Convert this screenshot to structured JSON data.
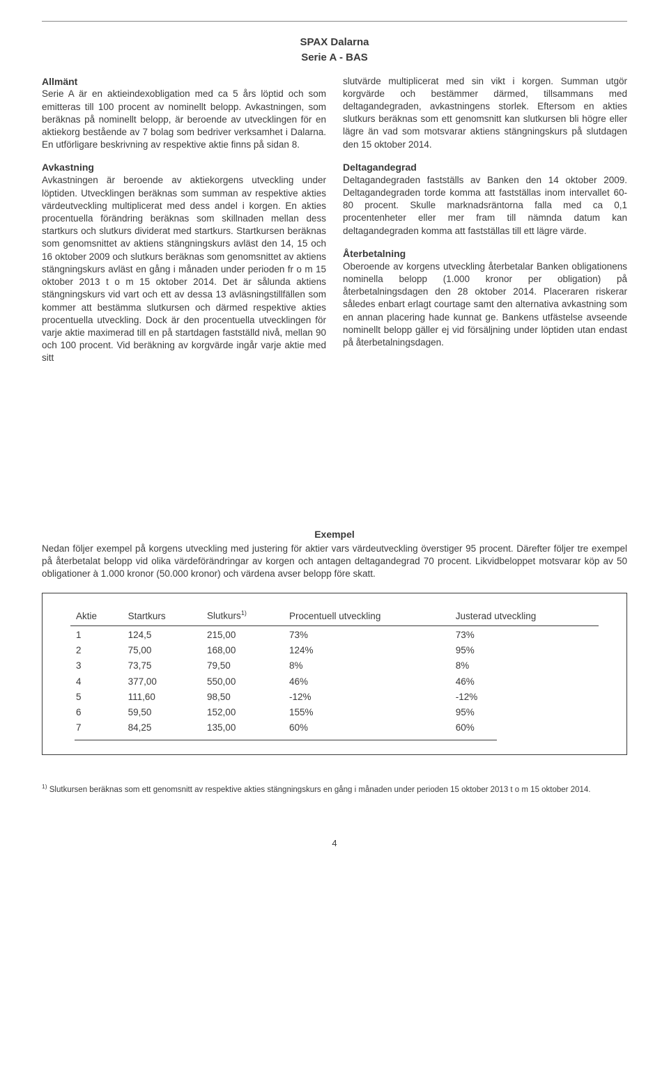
{
  "header": {
    "title": "SPAX Dalarna",
    "subtitle": "Serie A - BAS"
  },
  "left": {
    "h1": "Allmänt",
    "p1": "Serie A är en aktieindexobligation med ca 5 års löptid och som emitteras till 100 procent av nominellt belopp. Avkastningen, som beräknas på nominellt belopp, är beroende av utvecklingen för en aktiekorg bestående av 7 bolag som bedriver verksamhet i Dalarna. En utförligare beskrivning av respektive aktie finns på sidan 8.",
    "h2": "Avkastning",
    "p2": "Avkastningen är beroende av aktiekorgens utveckling under löptiden. Utvecklingen beräknas som summan av respektive akties värdeutveckling multiplicerat med dess andel i korgen. En akties procentuella förändring beräknas som skillnaden mellan dess startkurs och slutkurs dividerat med startkurs. Startkursen beräknas som genomsnittet av aktiens stängningskurs avläst den 14, 15 och 16 oktober 2009 och slutkurs beräknas som genomsnittet av aktiens stängningskurs avläst en gång i månaden under perioden fr o m 15 oktober 2013 t o m 15 oktober 2014. Det är sålunda aktiens stängningskurs vid vart och ett av dessa 13 avläsningstillfällen som kommer att bestämma slutkursen och därmed respektive akties procentuella utveckling. Dock är den procentuella utvecklingen för varje aktie maximerad till en på startdagen fastställd nivå, mellan 90 och 100 procent. Vid beräkning av korgvärde ingår varje aktie med sitt"
  },
  "right": {
    "p1": "slutvärde multiplicerat med sin vikt i korgen. Summan utgör korgvärde och bestämmer därmed, tillsammans med deltagandegraden, avkastningens storlek. Eftersom en akties slutkurs beräknas som ett genomsnitt kan slutkursen bli högre eller lägre än vad som motsvarar aktiens stängningskurs på slutdagen den 15 oktober 2014.",
    "h2": "Deltagandegrad",
    "p2": "Deltagandegraden fastställs av Banken den 14 oktober 2009. Deltagandegraden torde komma att fastställas inom intervallet 60-80 procent. Skulle marknadsräntorna falla med ca 0,1 procentenheter eller mer fram till nämnda datum kan deltagandegraden komma att fastställas till ett lägre värde.",
    "h3": "Återbetalning",
    "p3": "Oberoende av korgens utveckling återbetalar Banken obligationens nominella belopp (1.000 kronor per obligation) på återbetalningsdagen den 28 oktober 2014. Placeraren riskerar således enbart erlagt courtage samt den alternativa avkastning som en annan placering hade kunnat ge. Bankens utfästelse avseende nominellt belopp gäller ej vid försäljning under löptiden utan endast på återbetalningsdagen."
  },
  "exempel": {
    "title": "Exempel",
    "intro": "Nedan följer exempel på korgens utveckling med justering för aktier vars värdeutveckling överstiger 95 procent. Därefter följer tre exempel på återbetalat belopp vid olika värdeförändringar av korgen och antagen deltagandegrad 70 procent. Likvidbeloppet motsvarar köp av 50 obligationer à 1.000 kronor (50.000 kronor) och värdena avser belopp före skatt."
  },
  "table": {
    "columns": [
      "Aktie",
      "Startkurs",
      "Slutkurs",
      "Procentuell utveckling",
      "Justerad utveckling"
    ],
    "slutkurs_sup": "1)",
    "rows": [
      [
        "1",
        "124,5",
        "215,00",
        "73%",
        "73%"
      ],
      [
        "2",
        "75,00",
        "168,00",
        "124%",
        "95%"
      ],
      [
        "3",
        "73,75",
        "79,50",
        "8%",
        "8%"
      ],
      [
        "4",
        "377,00",
        "550,00",
        "46%",
        "46%"
      ],
      [
        "5",
        "111,60",
        "98,50",
        "-12%",
        "-12%"
      ],
      [
        "6",
        "59,50",
        "152,00",
        "155%",
        "95%"
      ],
      [
        "7",
        "84,25",
        "135,00",
        "60%",
        "60%"
      ]
    ]
  },
  "footnote": {
    "sup": "1)",
    "text": " Slutkursen beräknas som ett genomsnitt av respektive akties stängningskurs en gång i månaden under perioden 15 oktober 2013 t o m  15 oktober 2014."
  },
  "page_number": "4"
}
